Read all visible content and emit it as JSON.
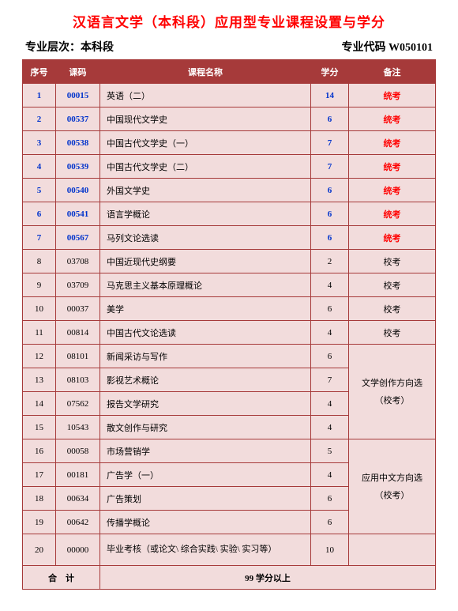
{
  "title": "汉语言文学（本科段）应用型专业课程设置与学分",
  "subhead": {
    "level_label": "专业层次：本科段",
    "code_label": "专业代码 W050101"
  },
  "header": {
    "idx": "序号",
    "code": "课码",
    "name": "课程名称",
    "credit": "学分",
    "note": "备注"
  },
  "rows": [
    {
      "idx": "1",
      "code": "00015",
      "name": "英语（二）",
      "credit": "14",
      "note": "统考",
      "hl": true
    },
    {
      "idx": "2",
      "code": "00537",
      "name": "中国现代文学史",
      "credit": "6",
      "note": "统考",
      "hl": true
    },
    {
      "idx": "3",
      "code": "00538",
      "name": "中国古代文学史（一）",
      "credit": "7",
      "note": "统考",
      "hl": true
    },
    {
      "idx": "4",
      "code": "00539",
      "name": "中国古代文学史（二）",
      "credit": "7",
      "note": "统考",
      "hl": true
    },
    {
      "idx": "5",
      "code": "00540",
      "name": "外国文学史",
      "credit": "6",
      "note": "统考",
      "hl": true
    },
    {
      "idx": "6",
      "code": "00541",
      "name": "语言学概论",
      "credit": "6",
      "note": "统考",
      "hl": true
    },
    {
      "idx": "7",
      "code": "00567",
      "name": "马列文论选读",
      "credit": "6",
      "note": "统考",
      "hl": true
    },
    {
      "idx": "8",
      "code": "03708",
      "name": "中国近现代史纲要",
      "credit": "2",
      "note": "校考",
      "hl": false
    },
    {
      "idx": "9",
      "code": "03709",
      "name": "马克思主义基本原理概论",
      "credit": "4",
      "note": "校考",
      "hl": false
    },
    {
      "idx": "10",
      "code": "00037",
      "name": "美学",
      "credit": "6",
      "note": "校考",
      "hl": false
    },
    {
      "idx": "11",
      "code": "00814",
      "name": "中国古代文论选读",
      "credit": "4",
      "note": "校考",
      "hl": false
    }
  ],
  "groupA": {
    "note_line1": "文学创作方向选",
    "note_line2": "（校考）",
    "rows": [
      {
        "idx": "12",
        "code": "08101",
        "name": "新闻采访与写作",
        "credit": "6"
      },
      {
        "idx": "13",
        "code": "08103",
        "name": "影视艺术概论",
        "credit": "7"
      },
      {
        "idx": "14",
        "code": "07562",
        "name": "报告文学研究",
        "credit": "4"
      },
      {
        "idx": "15",
        "code": "10543",
        "name": "散文创作与研究",
        "credit": "4"
      }
    ]
  },
  "groupB": {
    "note_line1": "应用中文方向选",
    "note_line2": "（校考）",
    "rows": [
      {
        "idx": "16",
        "code": "00058",
        "name": "市场营销学",
        "credit": "5"
      },
      {
        "idx": "17",
        "code": "00181",
        "name": "广告学（一）",
        "credit": "4"
      },
      {
        "idx": "18",
        "code": "00634",
        "name": "广告策划",
        "credit": "6"
      },
      {
        "idx": "19",
        "code": "00642",
        "name": "传播学概论",
        "credit": "6"
      }
    ]
  },
  "final": {
    "idx": "20",
    "code": "00000",
    "name": "毕业考核（或论文\\ 综合实践\\ 实验\\ 实习等）",
    "credit": "10"
  },
  "sum": {
    "label": "合　计",
    "value": "99 学分以上"
  },
  "colors": {
    "header_bg": "#a63a3a",
    "header_fg": "#ffffff",
    "cell_bg": "#f2dcdc",
    "border": "#a63a3a",
    "title": "#ff0000",
    "highlight_blue": "#0033cc",
    "highlight_red": "#ff0000"
  }
}
